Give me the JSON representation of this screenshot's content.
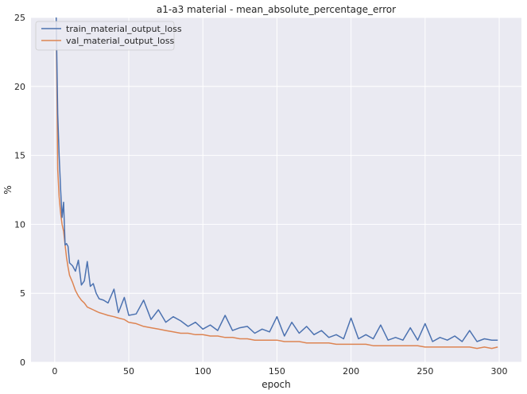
{
  "chart_data": {
    "type": "line",
    "title": "a1-a3 material - mean_absolute_percentage_error",
    "xlabel": "epoch",
    "ylabel": "%",
    "xlim": [
      -16,
      315
    ],
    "ylim": [
      0,
      25
    ],
    "xticks": [
      0,
      50,
      100,
      150,
      200,
      250,
      300
    ],
    "yticks": [
      0,
      5,
      10,
      15,
      20,
      25
    ],
    "grid": true,
    "legend_position": "top-left",
    "background": "#eaeaf2",
    "series": [
      {
        "name": "train_material_output_loss",
        "color": "#4c72b0",
        "x": [
          1,
          2,
          3,
          4,
          5,
          6,
          7,
          8,
          9,
          10,
          12,
          14,
          16,
          18,
          20,
          22,
          24,
          26,
          28,
          30,
          33,
          36,
          40,
          43,
          47,
          50,
          55,
          60,
          65,
          70,
          75,
          80,
          85,
          90,
          95,
          100,
          105,
          110,
          115,
          120,
          125,
          130,
          135,
          140,
          145,
          150,
          155,
          160,
          165,
          170,
          175,
          180,
          185,
          190,
          195,
          200,
          205,
          210,
          215,
          220,
          225,
          230,
          235,
          240,
          245,
          250,
          255,
          260,
          265,
          270,
          275,
          280,
          285,
          290,
          295,
          299
        ],
        "y": [
          25,
          18,
          15,
          12.5,
          10.5,
          11.6,
          8.5,
          8.6,
          8.4,
          7.2,
          7,
          6.6,
          7.4,
          5.6,
          5.9,
          7.3,
          5.5,
          5.7,
          5,
          4.6,
          4.5,
          4.3,
          5.3,
          3.6,
          4.7,
          3.4,
          3.5,
          4.5,
          3.1,
          3.8,
          2.9,
          3.3,
          3.0,
          2.6,
          2.9,
          2.4,
          2.7,
          2.3,
          3.4,
          2.3,
          2.5,
          2.6,
          2.1,
          2.4,
          2.2,
          3.3,
          1.9,
          2.9,
          2.1,
          2.6,
          2.0,
          2.3,
          1.8,
          2.0,
          1.7,
          3.2,
          1.7,
          2.0,
          1.7,
          2.7,
          1.6,
          1.8,
          1.6,
          2.5,
          1.6,
          2.8,
          1.5,
          1.8,
          1.6,
          1.9,
          1.5,
          2.3,
          1.5,
          1.7,
          1.6,
          1.6
        ]
      },
      {
        "name": "val_material_output_loss",
        "color": "#dd8452",
        "x": [
          1,
          2,
          3,
          4,
          5,
          6,
          7,
          8,
          9,
          10,
          12,
          14,
          16,
          18,
          20,
          22,
          24,
          26,
          28,
          30,
          33,
          36,
          40,
          43,
          47,
          50,
          55,
          60,
          65,
          70,
          75,
          80,
          85,
          90,
          95,
          100,
          105,
          110,
          115,
          120,
          125,
          130,
          135,
          140,
          145,
          150,
          155,
          160,
          165,
          170,
          175,
          180,
          185,
          190,
          195,
          200,
          205,
          210,
          215,
          220,
          225,
          230,
          235,
          240,
          245,
          250,
          255,
          260,
          265,
          270,
          275,
          280,
          285,
          290,
          295,
          299
        ],
        "y": [
          25,
          14,
          12,
          10.8,
          10,
          9.5,
          8.5,
          7.6,
          6.9,
          6.3,
          5.8,
          5.2,
          4.8,
          4.5,
          4.3,
          4.0,
          3.9,
          3.8,
          3.7,
          3.6,
          3.5,
          3.4,
          3.3,
          3.2,
          3.1,
          2.9,
          2.8,
          2.6,
          2.5,
          2.4,
          2.3,
          2.2,
          2.1,
          2.1,
          2.0,
          2.0,
          1.9,
          1.9,
          1.8,
          1.8,
          1.7,
          1.7,
          1.6,
          1.6,
          1.6,
          1.6,
          1.5,
          1.5,
          1.5,
          1.4,
          1.4,
          1.4,
          1.4,
          1.3,
          1.3,
          1.3,
          1.3,
          1.3,
          1.2,
          1.2,
          1.2,
          1.2,
          1.2,
          1.2,
          1.2,
          1.1,
          1.1,
          1.1,
          1.1,
          1.1,
          1.1,
          1.1,
          1.0,
          1.1,
          1.0,
          1.1
        ]
      }
    ]
  }
}
